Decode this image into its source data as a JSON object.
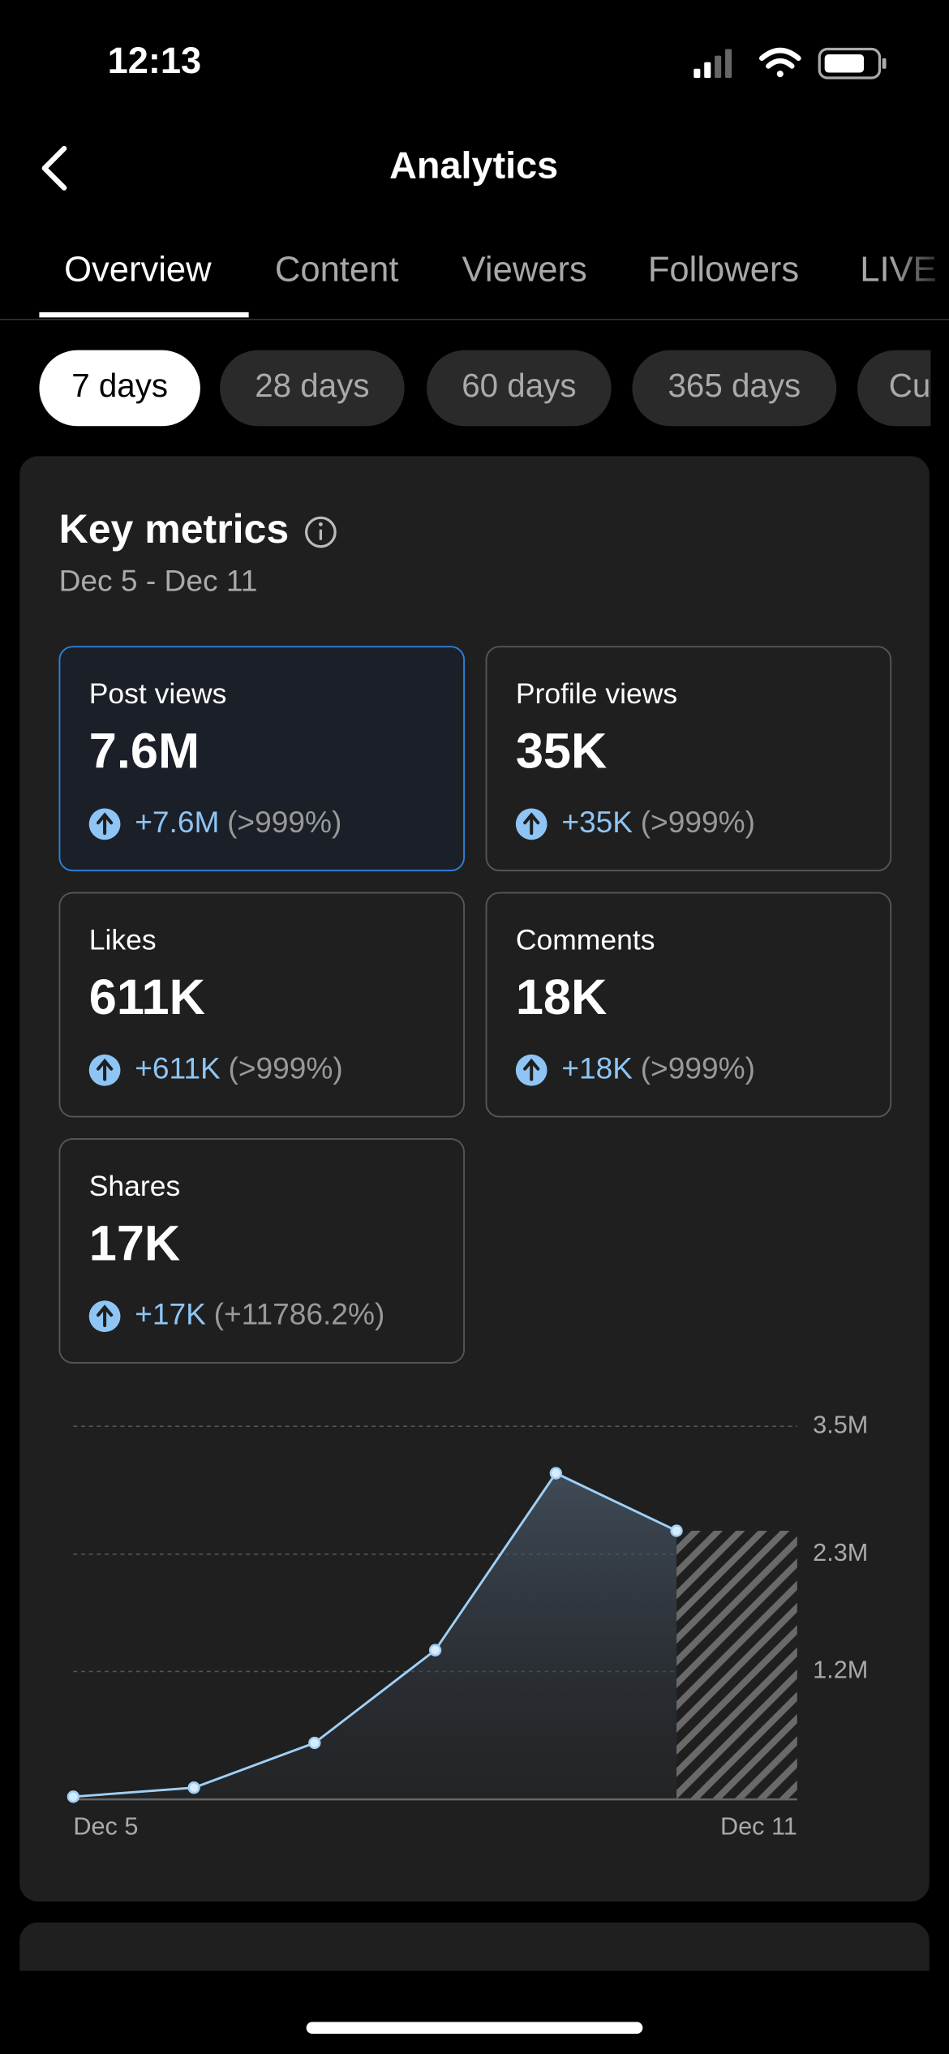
{
  "status_bar": {
    "time": "12:13"
  },
  "header": {
    "title": "Analytics"
  },
  "tabs": [
    "Overview",
    "Content",
    "Viewers",
    "Followers",
    "LIVE"
  ],
  "periods": [
    "7 days",
    "28 days",
    "60 days",
    "365 days",
    "Cu"
  ],
  "key_metrics": {
    "title": "Key metrics",
    "date_range": "Dec 5 - Dec 11",
    "cards": [
      {
        "label": "Post views",
        "value": "7.6M",
        "change": "+7.6M",
        "percent": "(>999%)"
      },
      {
        "label": "Profile views",
        "value": "35K",
        "change": "+35K",
        "percent": "(>999%)"
      },
      {
        "label": "Likes",
        "value": "611K",
        "change": "+611K",
        "percent": "(>999%)"
      },
      {
        "label": "Comments",
        "value": "18K",
        "change": "+18K",
        "percent": "(>999%)"
      },
      {
        "label": "Shares",
        "value": "17K",
        "change": "+17K",
        "percent": "(+11786.2%)"
      }
    ]
  },
  "chart_data": {
    "type": "line",
    "categories": [
      "Dec 5",
      null,
      null,
      null,
      null,
      null,
      "Dec 11"
    ],
    "series": [
      {
        "color": "#9fd0f7",
        "values": [
          25000,
          110000,
          530000,
          1400000,
          3060000,
          2520000,
          null
        ]
      }
    ],
    "ylim": [
      0,
      3500000
    ],
    "yticks": [
      {
        "value": 3500000,
        "label": "3.5M"
      },
      {
        "value": 2300000,
        "label": "2.3M"
      },
      {
        "value": 1200000,
        "label": "1.2M"
      }
    ],
    "grid": true
  }
}
